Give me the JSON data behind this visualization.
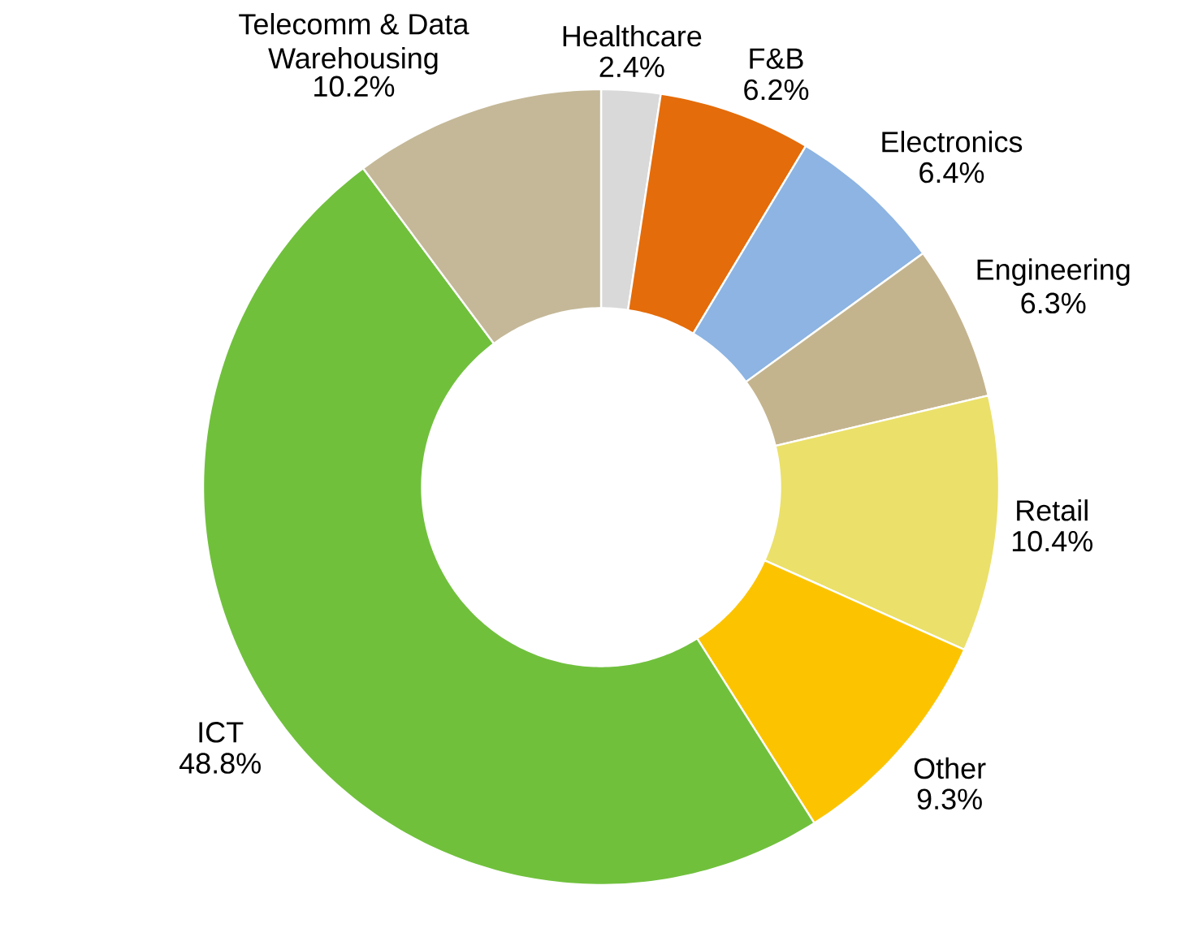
{
  "chart_data": {
    "type": "donut",
    "categories": [
      "Healthcare",
      "F&B",
      "Electronics",
      "Engineering",
      "Retail",
      "Other",
      "ICT",
      "Telecomm & Data Warehousing"
    ],
    "values": [
      2.4,
      6.2,
      6.4,
      6.3,
      10.4,
      9.3,
      48.8,
      10.2
    ],
    "colors": [
      "#d9d9d9",
      "#e46c0a",
      "#8db4e2",
      "#c4b48e",
      "#ebe06a",
      "#fcc400",
      "#70c03c",
      "#c4b898"
    ],
    "value_labels": [
      "2.4%",
      "6.2%",
      "6.4%",
      "6.3%",
      "10.4%",
      "9.3%",
      "48.8%",
      "10.2%"
    ]
  }
}
